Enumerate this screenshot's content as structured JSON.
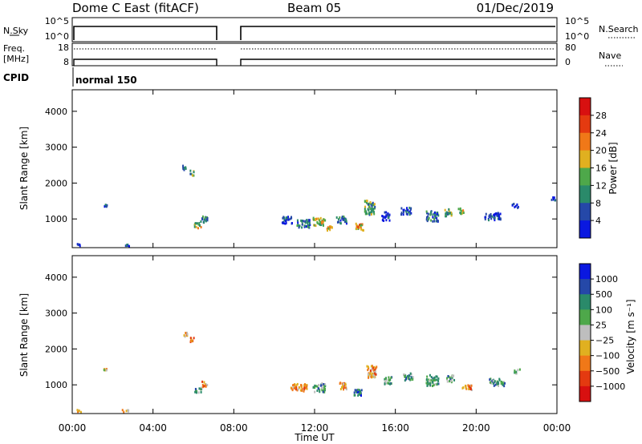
{
  "header": {
    "title": "Dome C East (fitACF)",
    "beam": "Beam 05",
    "date": "01/Dec/2019"
  },
  "nsky_panel": {
    "left_label": "N.Sky",
    "left_ticks": [
      "10^5",
      "10^0"
    ],
    "right_label": "N.Search",
    "right_ticks": [
      "10^5",
      "10^0"
    ]
  },
  "freq_panel": {
    "left_label_1": "Freq.",
    "left_label_2": "[MHz]",
    "left_ticks": [
      "18",
      "8"
    ],
    "right_label": "Nave",
    "right_ticks": [
      "80",
      "0"
    ]
  },
  "cpid": {
    "label": "CPID",
    "mode": "normal 150"
  },
  "chart_data": [
    {
      "type": "heatmap",
      "name": "power",
      "ylabel": "Slant Range [km]",
      "yticks": [
        1000,
        2000,
        3000,
        4000
      ],
      "ylim": [
        200,
        4600
      ],
      "xlim": [
        0,
        24
      ],
      "colorbar": {
        "label": "Power [dB]",
        "ticks": [
          "4",
          "8",
          "12",
          "16",
          "20",
          "24",
          "28"
        ],
        "colors": [
          "#0a18e0",
          "#2548a8",
          "#2a8a6a",
          "#4ea84a",
          "#e0b020",
          "#f07818",
          "#e43a10",
          "#d81010"
        ]
      },
      "clusters": [
        {
          "t": 0.3,
          "r": 300,
          "w": 0.15,
          "h": 70,
          "c": 1
        },
        {
          "t": 1.6,
          "r": 1400,
          "w": 0.2,
          "h": 60,
          "c": 1
        },
        {
          "t": 2.7,
          "r": 300,
          "w": 0.2,
          "h": 60,
          "c": 1
        },
        {
          "t": 5.5,
          "r": 2450,
          "w": 0.2,
          "h": 150,
          "c": 2
        },
        {
          "t": 5.9,
          "r": 2300,
          "w": 0.2,
          "h": 150,
          "c": 3
        },
        {
          "t": 6.2,
          "r": 850,
          "w": 0.35,
          "h": 150,
          "c": 4
        },
        {
          "t": 6.5,
          "r": 1000,
          "w": 0.35,
          "h": 200,
          "c": 2
        },
        {
          "t": 10.6,
          "r": 1000,
          "w": 0.5,
          "h": 200,
          "c": 1
        },
        {
          "t": 11.4,
          "r": 900,
          "w": 0.7,
          "h": 220,
          "c": 2
        },
        {
          "t": 12.2,
          "r": 950,
          "w": 0.6,
          "h": 220,
          "c": 4
        },
        {
          "t": 12.7,
          "r": 780,
          "w": 0.3,
          "h": 150,
          "c": 5
        },
        {
          "t": 13.3,
          "r": 1000,
          "w": 0.5,
          "h": 200,
          "c": 2
        },
        {
          "t": 14.2,
          "r": 800,
          "w": 0.4,
          "h": 200,
          "c": 5
        },
        {
          "t": 14.7,
          "r": 1350,
          "w": 0.5,
          "h": 400,
          "c": 3
        },
        {
          "t": 15.5,
          "r": 1100,
          "w": 0.4,
          "h": 250,
          "c": 1
        },
        {
          "t": 16.5,
          "r": 1250,
          "w": 0.5,
          "h": 200,
          "c": 1
        },
        {
          "t": 17.8,
          "r": 1100,
          "w": 0.6,
          "h": 300,
          "c": 2
        },
        {
          "t": 18.6,
          "r": 1200,
          "w": 0.4,
          "h": 200,
          "c": 3
        },
        {
          "t": 19.2,
          "r": 1250,
          "w": 0.3,
          "h": 150,
          "c": 4
        },
        {
          "t": 20.8,
          "r": 1100,
          "w": 0.8,
          "h": 200,
          "c": 1
        },
        {
          "t": 21.9,
          "r": 1400,
          "w": 0.3,
          "h": 120,
          "c": 1
        },
        {
          "t": 23.8,
          "r": 1600,
          "w": 0.2,
          "h": 120,
          "c": 1
        }
      ]
    },
    {
      "type": "heatmap",
      "name": "velocity",
      "ylabel": "Slant Range [km]",
      "xlabel": "Time UT",
      "xticks": [
        "00:00",
        "04:00",
        "08:00",
        "12:00",
        "16:00",
        "20:00",
        "00:00"
      ],
      "yticks": [
        1000,
        2000,
        3000,
        4000
      ],
      "ylim": [
        200,
        4600
      ],
      "xlim": [
        0,
        24
      ],
      "colorbar": {
        "label": "Velocity [m s⁻¹]",
        "ticks": [
          "1000",
          "500",
          "100",
          "25",
          "−25",
          "−100",
          "−500",
          "−1000"
        ],
        "colors": [
          "#0a18e0",
          "#2548a8",
          "#2a8a6a",
          "#4ea84a",
          "#bebebe",
          "#e0b020",
          "#f07818",
          "#e43a10",
          "#d81010"
        ]
      },
      "clusters": [
        {
          "t": 0.3,
          "r": 300,
          "w": 0.2,
          "h": 70,
          "c": 5
        },
        {
          "t": 1.6,
          "r": 1450,
          "w": 0.15,
          "h": 60,
          "c": 5
        },
        {
          "t": 2.6,
          "r": 300,
          "w": 0.3,
          "h": 60,
          "c": 5
        },
        {
          "t": 5.6,
          "r": 2450,
          "w": 0.2,
          "h": 150,
          "c": 6
        },
        {
          "t": 5.9,
          "r": 2300,
          "w": 0.2,
          "h": 150,
          "c": 7
        },
        {
          "t": 6.2,
          "r": 880,
          "w": 0.4,
          "h": 150,
          "c": 3
        },
        {
          "t": 6.5,
          "r": 1050,
          "w": 0.3,
          "h": 150,
          "c": 6
        },
        {
          "t": 11.2,
          "r": 950,
          "w": 0.8,
          "h": 220,
          "c": 6
        },
        {
          "t": 12.2,
          "r": 950,
          "w": 0.6,
          "h": 250,
          "c": 3
        },
        {
          "t": 13.4,
          "r": 1000,
          "w": 0.4,
          "h": 200,
          "c": 6
        },
        {
          "t": 14.1,
          "r": 800,
          "w": 0.4,
          "h": 200,
          "c": 2
        },
        {
          "t": 14.8,
          "r": 1400,
          "w": 0.5,
          "h": 350,
          "c": 6
        },
        {
          "t": 15.6,
          "r": 1150,
          "w": 0.4,
          "h": 200,
          "c": 3
        },
        {
          "t": 16.6,
          "r": 1250,
          "w": 0.5,
          "h": 200,
          "c": 3
        },
        {
          "t": 17.8,
          "r": 1150,
          "w": 0.6,
          "h": 300,
          "c": 3
        },
        {
          "t": 18.7,
          "r": 1200,
          "w": 0.4,
          "h": 200,
          "c": 3
        },
        {
          "t": 19.5,
          "r": 950,
          "w": 0.5,
          "h": 150,
          "c": 6
        },
        {
          "t": 21.0,
          "r": 1100,
          "w": 0.8,
          "h": 200,
          "c": 3
        },
        {
          "t": 22.0,
          "r": 1400,
          "w": 0.3,
          "h": 120,
          "c": 4
        }
      ]
    }
  ]
}
